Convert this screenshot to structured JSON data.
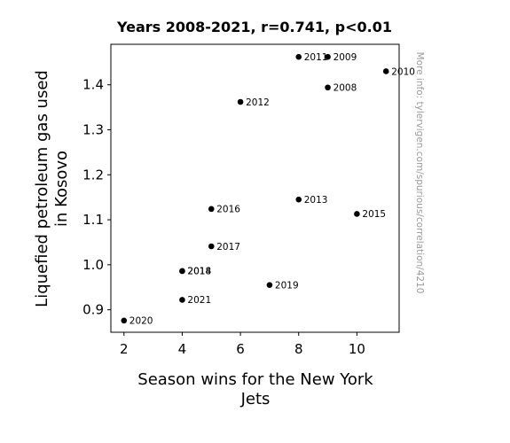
{
  "chart_data": {
    "type": "scatter",
    "title": "Years 2008-2021, r=0.741, p<0.01",
    "xlabel_lines": [
      "Season wins for the New York",
      "Jets"
    ],
    "ylabel_lines": [
      "Liquefied petroleum gas used",
      "in Kosovo"
    ],
    "side_note": "More info: tylervigen.com/spurious/correlation/4210",
    "xlim": [
      1.55,
      11.45
    ],
    "ylim": [
      0.85,
      1.49
    ],
    "xticks": [
      2,
      4,
      6,
      8,
      10
    ],
    "yticks": [
      0.9,
      1.0,
      1.1,
      1.2,
      1.3,
      1.4
    ],
    "ytick_labels": [
      "0.9",
      "1.0",
      "1.1",
      "1.2",
      "1.3",
      "1.4"
    ],
    "marker_color": "#000000",
    "grid": false,
    "points": [
      {
        "label": "2008",
        "x": 9,
        "y": 1.394
      },
      {
        "label": "2009",
        "x": 9,
        "y": 1.462
      },
      {
        "label": "2010",
        "x": 11,
        "y": 1.43
      },
      {
        "label": "2011",
        "x": 8,
        "y": 1.462
      },
      {
        "label": "2012",
        "x": 6,
        "y": 1.362
      },
      {
        "label": "2013",
        "x": 8,
        "y": 1.145
      },
      {
        "label": "2014",
        "x": 4,
        "y": 0.986
      },
      {
        "label": "2015",
        "x": 10,
        "y": 1.113
      },
      {
        "label": "2016",
        "x": 5,
        "y": 1.124
      },
      {
        "label": "2017",
        "x": 5,
        "y": 1.041
      },
      {
        "label": "2018",
        "x": 4,
        "y": 0.986
      },
      {
        "label": "2019",
        "x": 7,
        "y": 0.955
      },
      {
        "label": "2020",
        "x": 2,
        "y": 0.876
      },
      {
        "label": "2021",
        "x": 4,
        "y": 0.922
      }
    ]
  }
}
